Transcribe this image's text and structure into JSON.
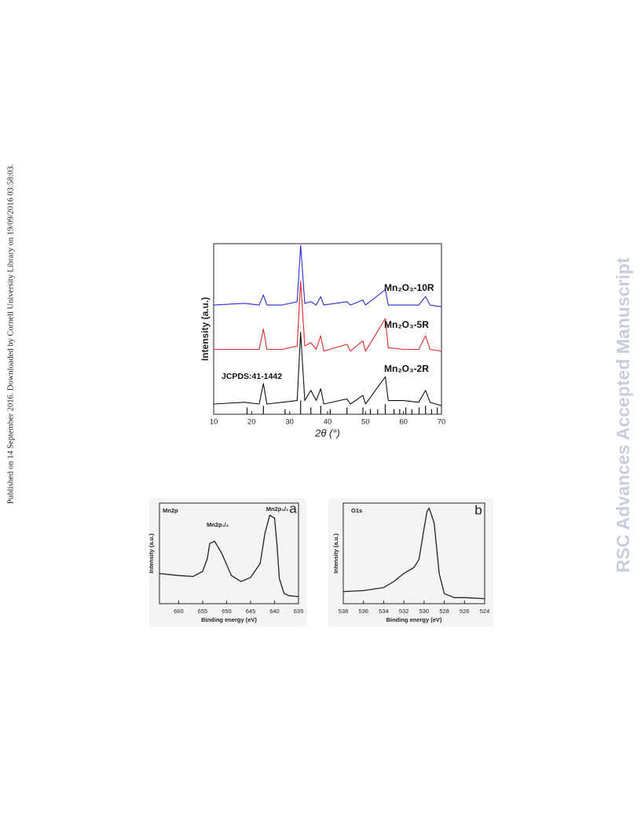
{
  "side_note": "Published on 14 September 2016. Downloaded by Cornell University Library on 19/09/2016 03:58:03.",
  "watermark": "RSC Advances Accepted Manuscript",
  "chart_data": [
    {
      "type": "line",
      "xlabel": "2θ (°)",
      "ylabel": "Intensity (a.u.)",
      "x": [
        10,
        18,
        22,
        23.1,
        24,
        28,
        32,
        32.9,
        34,
        35.6,
        37,
        38.2,
        39,
        45.1,
        46,
        49.3,
        50,
        55.2,
        56,
        60,
        64,
        65.8,
        67,
        70
      ],
      "series": [
        {
          "name": "Mn₂O₃-10R",
          "color": "#2b2bd6",
          "values": [
            64,
            65,
            64,
            70,
            64,
            64,
            66,
            99,
            65,
            66,
            64,
            69,
            64,
            66,
            64,
            67,
            64,
            73,
            64,
            64,
            64,
            69,
            64,
            63
          ]
        },
        {
          "name": "Mn₂O₃-5R",
          "color": "#e02a2a",
          "values": [
            38,
            38,
            38,
            50,
            38,
            38,
            40,
            78,
            40,
            42,
            38,
            46,
            37,
            41,
            37,
            43,
            37,
            56,
            39,
            38,
            38,
            46,
            38,
            37
          ]
        },
        {
          "name": "Mn₂O₃-2R",
          "color": "#111111",
          "values": [
            6,
            7,
            6,
            18,
            6,
            7,
            8,
            48,
            8,
            14,
            8,
            15,
            6,
            9,
            6,
            11,
            6,
            22,
            8,
            8,
            7,
            14,
            7,
            5
          ]
        }
      ],
      "reference": {
        "name": "JCPDS:41-1442",
        "color": "#111111",
        "x": [
          18.8,
          23.1,
          28.8,
          32.9,
          35.6,
          38.2,
          40.7,
          45.1,
          49.3,
          51.3,
          53.2,
          55.2,
          57.5,
          59.0,
          60.6,
          62.2,
          64.1,
          65.8,
          67.4,
          68.9
        ],
        "values": [
          4,
          5,
          3,
          8,
          4,
          5,
          3,
          4,
          4,
          3,
          3,
          6,
          3,
          3,
          4,
          3,
          4,
          5,
          3,
          4
        ]
      },
      "xlim": [
        10,
        70
      ],
      "xticks": [
        10,
        20,
        30,
        40,
        50,
        60,
        70
      ],
      "ylim": [
        0,
        100
      ]
    },
    {
      "type": "line",
      "xlabel": "Binding energy (eV)",
      "ylabel": "Intensity (a.u.)",
      "annotations": [
        "Mn2p",
        "a",
        "Mn2p₁/₂",
        "Mn2p₃/₂"
      ],
      "x": [
        664,
        660,
        657,
        655,
        654,
        653.5,
        652.5,
        651,
        649,
        647,
        645,
        643,
        642,
        641,
        640,
        639.5,
        639,
        638,
        637,
        635
      ],
      "series": [
        {
          "color": "#222222",
          "values": [
            30,
            28,
            27,
            32,
            45,
            60,
            62,
            50,
            28,
            22,
            26,
            40,
            70,
            88,
            85,
            60,
            25,
            10,
            8,
            7
          ]
        }
      ],
      "xlim": [
        664,
        635
      ],
      "xticks": [
        660,
        655,
        650,
        645,
        640,
        635
      ],
      "ylim": [
        0,
        100
      ]
    },
    {
      "type": "line",
      "xlabel": "Binding energy (eV)",
      "ylabel": "Intensity (a.u.)",
      "annotations": [
        "O1s",
        "b"
      ],
      "x": [
        538,
        536,
        534,
        533,
        532,
        531,
        530.5,
        530,
        529.7,
        529.5,
        529,
        528.5,
        528,
        527,
        526,
        524
      ],
      "series": [
        {
          "color": "#222222",
          "values": [
            12,
            13,
            16,
            22,
            30,
            36,
            44,
            75,
            92,
            95,
            80,
            30,
            10,
            6,
            6,
            5
          ]
        }
      ],
      "xlim": [
        538,
        524
      ],
      "xticks": [
        538,
        536,
        534,
        532,
        530,
        528,
        526,
        524
      ],
      "ylim": [
        0,
        100
      ]
    }
  ]
}
